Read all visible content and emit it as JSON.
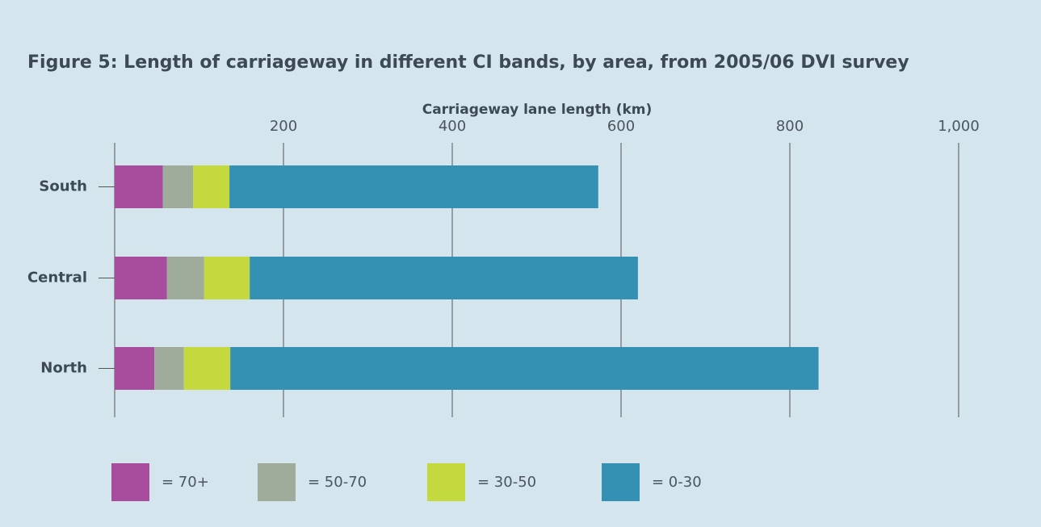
{
  "chart_data": {
    "type": "stacked-barh",
    "title": "Figure 5: Length of carriageway in different CI bands, by area, from 2005/06 DVI survey",
    "x_label": "Carriageway lane length (km)",
    "categories": [
      "South",
      "Central",
      "North"
    ],
    "series": [
      {
        "name": "= 70+",
        "color": "#a84d9e",
        "values": [
          57,
          62,
          47
        ]
      },
      {
        "name": "= 50-70",
        "color": "#9fac9c",
        "values": [
          36,
          44,
          35
        ]
      },
      {
        "name": "= 30-50",
        "color": "#c4d93e",
        "values": [
          43,
          54,
          55
        ]
      },
      {
        "name": "= 0-30",
        "color": "#3491b4",
        "values": [
          437,
          460,
          697
        ]
      }
    ],
    "xlim": [
      0,
      1000
    ],
    "xticks": [
      200,
      400,
      600,
      800,
      {
        "value": 1000,
        "label": "1,000"
      }
    ],
    "grid": true
  }
}
